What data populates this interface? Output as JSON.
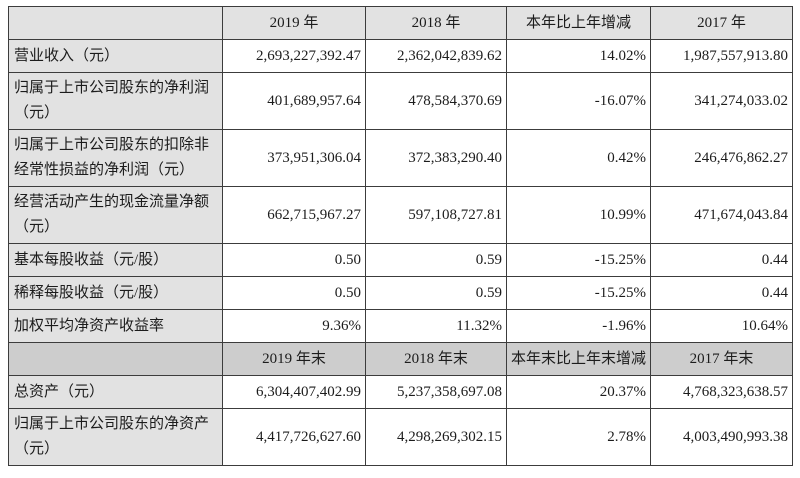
{
  "colors": {
    "header_light_bg": "#e2e2e2",
    "header_dark_bg": "#cdcdcd",
    "border": "#3c3c3c",
    "text": "#1c1c1c"
  },
  "table": {
    "sections": [
      {
        "header": [
          "",
          "2019 年",
          "2018 年",
          "本年比上年增减",
          "2017 年"
        ],
        "rows": [
          {
            "label": "营业收入（元）",
            "values": [
              "2,693,227,392.47",
              "2,362,042,839.62",
              "14.02%",
              "1,987,557,913.80"
            ]
          },
          {
            "label": "归属于上市公司股东的净利润（元）",
            "values": [
              "401,689,957.64",
              "478,584,370.69",
              "-16.07%",
              "341,274,033.02"
            ]
          },
          {
            "label": "归属于上市公司股东的扣除非经常性损益的净利润（元）",
            "values": [
              "373,951,306.04",
              "372,383,290.40",
              "0.42%",
              "246,476,862.27"
            ]
          },
          {
            "label": "经营活动产生的现金流量净额（元）",
            "values": [
              "662,715,967.27",
              "597,108,727.81",
              "10.99%",
              "471,674,043.84"
            ]
          },
          {
            "label": "基本每股收益（元/股）",
            "values": [
              "0.50",
              "0.59",
              "-15.25%",
              "0.44"
            ]
          },
          {
            "label": "稀释每股收益（元/股）",
            "values": [
              "0.50",
              "0.59",
              "-15.25%",
              "0.44"
            ]
          },
          {
            "label": "加权平均净资产收益率",
            "values": [
              "9.36%",
              "11.32%",
              "-1.96%",
              "10.64%"
            ]
          }
        ]
      },
      {
        "header": [
          "",
          "2019 年末",
          "2018 年末",
          "本年末比上年末增减",
          "2017 年末"
        ],
        "rows": [
          {
            "label": "总资产（元）",
            "values": [
              "6,304,407,402.99",
              "5,237,358,697.08",
              "20.37%",
              "4,768,323,638.57"
            ]
          },
          {
            "label": "归属于上市公司股东的净资产（元）",
            "values": [
              "4,417,726,627.60",
              "4,298,269,302.15",
              "2.78%",
              "4,003,490,993.38"
            ]
          }
        ]
      }
    ]
  }
}
